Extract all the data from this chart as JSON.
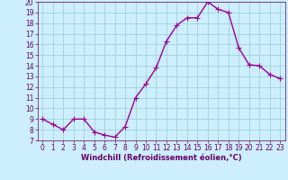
{
  "x": [
    0,
    1,
    2,
    3,
    4,
    5,
    6,
    7,
    8,
    9,
    10,
    11,
    12,
    13,
    14,
    15,
    16,
    17,
    18,
    19,
    20,
    21,
    22,
    23
  ],
  "y": [
    9.0,
    8.5,
    8.0,
    9.0,
    9.0,
    7.8,
    7.5,
    7.3,
    8.3,
    11.0,
    12.3,
    13.8,
    16.3,
    17.8,
    18.5,
    18.5,
    20.0,
    19.3,
    19.0,
    15.7,
    14.1,
    14.0,
    13.2,
    12.8
  ],
  "line_color": "#990099",
  "marker": "+",
  "marker_size": 4,
  "bg_color": "#cceeff",
  "grid_color": "#99cccc",
  "xlabel": "Windchill (Refroidissement éolien,°C)",
  "xlim": [
    -0.5,
    23.5
  ],
  "ylim": [
    7,
    20
  ],
  "yticks": [
    7,
    8,
    9,
    10,
    11,
    12,
    13,
    14,
    15,
    16,
    17,
    18,
    19,
    20
  ],
  "xticks": [
    0,
    1,
    2,
    3,
    4,
    5,
    6,
    7,
    8,
    9,
    10,
    11,
    12,
    13,
    14,
    15,
    16,
    17,
    18,
    19,
    20,
    21,
    22,
    23
  ],
  "tick_color": "#660066",
  "label_color": "#660066",
  "line_width": 1.0,
  "tick_fontsize": 5.5,
  "xlabel_fontsize": 6.0
}
